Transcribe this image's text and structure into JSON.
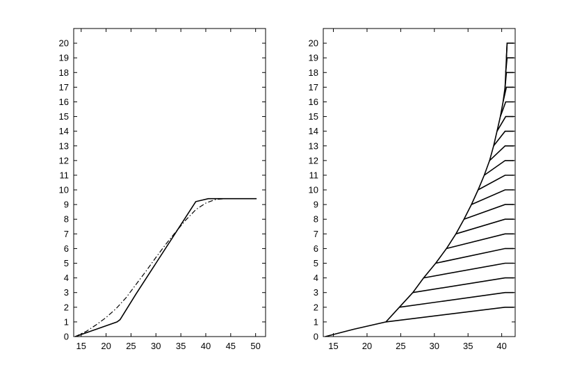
{
  "chart_data": [
    {
      "type": "line",
      "xlim": [
        13.5,
        52
      ],
      "ylim": [
        0,
        21
      ],
      "xticks": [
        15,
        20,
        25,
        30,
        35,
        40,
        45,
        50
      ],
      "yticks": [
        0,
        1,
        2,
        3,
        4,
        5,
        6,
        7,
        8,
        9,
        10,
        11,
        12,
        13,
        14,
        15,
        16,
        17,
        18,
        19,
        20
      ],
      "grid": false,
      "series": [
        {
          "style": "solid",
          "x": [
            13.8,
            18,
            22.2,
            22.8,
            26,
            30,
            34,
            38,
            40.5,
            41,
            50.2
          ],
          "y": [
            0,
            0.5,
            1.0,
            1.15,
            2.9,
            5.0,
            7.1,
            9.2,
            9.4,
            9.4,
            9.4
          ]
        },
        {
          "style": "dash-dot",
          "x": [
            13.8,
            16,
            18,
            20,
            22,
            24,
            26,
            28,
            30,
            32,
            34,
            36,
            38,
            40,
            42,
            44,
            46,
            50.2
          ],
          "y": [
            0,
            0.35,
            0.8,
            1.3,
            1.9,
            2.65,
            3.55,
            4.45,
            5.4,
            6.3,
            7.15,
            7.95,
            8.65,
            9.1,
            9.35,
            9.4,
            9.4,
            9.4
          ]
        }
      ]
    },
    {
      "type": "line",
      "xlim": [
        13.5,
        42
      ],
      "ylim": [
        0,
        21
      ],
      "xticks": [
        15,
        20,
        25,
        30,
        35,
        40
      ],
      "yticks": [
        0,
        1,
        2,
        3,
        4,
        5,
        6,
        7,
        8,
        9,
        10,
        11,
        12,
        13,
        14,
        15,
        16,
        17,
        18,
        19,
        20
      ],
      "grid": false,
      "envelope": {
        "x": [
          13.8,
          18,
          22.8,
          24.8,
          26.8,
          28.4,
          30.2,
          31.8,
          33.2,
          34.4,
          35.5,
          36.5,
          37.4,
          38.2,
          38.8,
          39.3,
          39.8,
          40.2,
          40.5,
          40.8
        ],
        "y": [
          0,
          0.5,
          1,
          2,
          3,
          4,
          5,
          6,
          7,
          8,
          9,
          10,
          11,
          12,
          13,
          14,
          15,
          16,
          17,
          20
        ]
      },
      "branches": [
        {
          "x": [
            22.8,
            40.5,
            41.8
          ],
          "y": [
            1,
            2.0,
            2.0
          ]
        },
        {
          "x": [
            24.8,
            40.5,
            41.8
          ],
          "y": [
            2,
            3.0,
            3.0
          ]
        },
        {
          "x": [
            26.8,
            40.5,
            41.8
          ],
          "y": [
            3,
            4.0,
            4.0
          ]
        },
        {
          "x": [
            28.4,
            40.5,
            41.8
          ],
          "y": [
            4,
            5.0,
            5.0
          ]
        },
        {
          "x": [
            30.2,
            40.5,
            41.8
          ],
          "y": [
            5,
            6.0,
            6.0
          ]
        },
        {
          "x": [
            31.8,
            40.5,
            41.8
          ],
          "y": [
            6,
            7.0,
            7.0
          ]
        },
        {
          "x": [
            33.2,
            40.5,
            41.8
          ],
          "y": [
            7,
            8.0,
            8.0
          ]
        },
        {
          "x": [
            34.4,
            40.5,
            41.8
          ],
          "y": [
            8,
            9.0,
            9.0
          ]
        },
        {
          "x": [
            35.5,
            40.5,
            41.8
          ],
          "y": [
            9,
            10.0,
            10.0
          ]
        },
        {
          "x": [
            36.5,
            40.5,
            41.8
          ],
          "y": [
            10,
            11.0,
            11.0
          ]
        },
        {
          "x": [
            37.4,
            40.5,
            41.8
          ],
          "y": [
            11,
            12.0,
            12.0
          ]
        },
        {
          "x": [
            38.2,
            40.5,
            41.8
          ],
          "y": [
            12,
            13.0,
            13.0
          ]
        },
        {
          "x": [
            38.8,
            40.5,
            41.8
          ],
          "y": [
            13,
            14.0,
            14.0
          ]
        },
        {
          "x": [
            39.3,
            40.6,
            41.8
          ],
          "y": [
            14,
            15.0,
            15.0
          ]
        },
        {
          "x": [
            39.8,
            40.6,
            41.8
          ],
          "y": [
            15,
            16.0,
            16.0
          ]
        },
        {
          "x": [
            40.2,
            40.7,
            41.8
          ],
          "y": [
            16,
            17.0,
            17.0
          ]
        },
        {
          "x": [
            40.5,
            40.7,
            41.8
          ],
          "y": [
            17,
            18.0,
            18.0
          ]
        },
        {
          "x": [
            40.6,
            40.8,
            41.8
          ],
          "y": [
            18,
            19.0,
            19.0
          ]
        },
        {
          "x": [
            40.7,
            40.8,
            41.8
          ],
          "y": [
            19,
            20.0,
            20.0
          ]
        }
      ]
    }
  ]
}
